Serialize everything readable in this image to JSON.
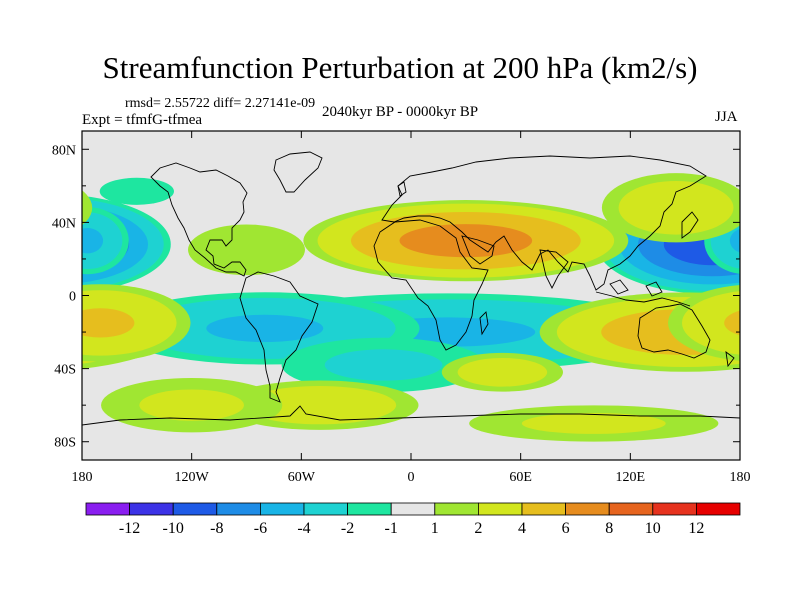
{
  "title": "Streamfunction Perturbation at 200 hPa (km2/s)",
  "stats": "rmsd= 2.55722 diff= 2.27141e-09",
  "experiment": "Expt = tfmfG-tfmea",
  "period": "2040kyr BP - 0000kyr BP",
  "season": "JJA",
  "chart_data": {
    "type": "heatmap",
    "projection": "cylindrical equidistant",
    "variable": "streamfunction perturbation",
    "units": "km2/s",
    "level_hPa": 200,
    "lat_range": [
      -90,
      90
    ],
    "lon_range": [
      -180,
      180
    ],
    "lat_tick_values": [
      80,
      40,
      0,
      -40,
      -80
    ],
    "lat_tick_labels": [
      "80N",
      "40N",
      "0",
      "40S",
      "80S"
    ],
    "lon_tick_values": [
      -180,
      -120,
      -60,
      0,
      60,
      120,
      180
    ],
    "lon_tick_labels": [
      "180",
      "120W",
      "60W",
      "0",
      "60E",
      "120E",
      "180"
    ],
    "contour_levels": [
      -12,
      -10,
      -8,
      -6,
      -4,
      -2,
      -1,
      1,
      2,
      4,
      6,
      8,
      10,
      12
    ],
    "colorbar_labels": [
      "-12",
      "-10",
      "-8",
      "-6",
      "-4",
      "-2",
      "-1",
      "1",
      "2",
      "4",
      "6",
      "8",
      "10",
      "12"
    ],
    "colors": [
      "#8a1ef0",
      "#3c32e6",
      "#1e5ae6",
      "#1e8ce6",
      "#19b4e6",
      "#1ed2d2",
      "#1ee6a0",
      "#e6e6e6",
      "#a0e632",
      "#d2e61e",
      "#e6be1e",
      "#e68c1e",
      "#e6641e",
      "#e6321e",
      "#e60000"
    ],
    "features": [
      {
        "lon": 165,
        "lat": 28,
        "value": -9.5,
        "lon_radius": 42,
        "lat_radius": 18
      },
      {
        "lon": -177,
        "lat": 30,
        "value": -4.5,
        "lon_radius": 16,
        "lat_radius": 13
      },
      {
        "lon": 20,
        "lat": -20,
        "value": -4.5,
        "lon_radius": 90,
        "lat_radius": 15
      },
      {
        "lon": -80,
        "lat": -18,
        "value": -4.5,
        "lon_radius": 60,
        "lat_radius": 14
      },
      {
        "lon": -15,
        "lat": -38,
        "value": -2.5,
        "lon_radius": 45,
        "lat_radius": 12
      },
      {
        "lon": 145,
        "lat": 48,
        "value": 3.5,
        "lon_radius": 30,
        "lat_radius": 14
      },
      {
        "lon": 30,
        "lat": 30,
        "value": 7,
        "lon_radius": 60,
        "lat_radius": 15
      },
      {
        "lon": -90,
        "lat": 25,
        "value": 1.8,
        "lon_radius": 30,
        "lat_radius": 13
      },
      {
        "lon": 150,
        "lat": -20,
        "value": 5.5,
        "lon_radius": 55,
        "lat_radius": 15
      },
      {
        "lon": -170,
        "lat": -15,
        "value": 4.5,
        "lon_radius": 35,
        "lat_radius": 15
      },
      {
        "lon": -50,
        "lat": -60,
        "value": 3.5,
        "lon_radius": 40,
        "lat_radius": 10
      },
      {
        "lon": 50,
        "lat": -42,
        "value": 3.2,
        "lon_radius": 25,
        "lat_radius": 8
      },
      {
        "lon": 100,
        "lat": -70,
        "value": 2.5,
        "lon_radius": 55,
        "lat_radius": 8
      },
      {
        "lon": -120,
        "lat": -60,
        "value": 2.5,
        "lon_radius": 40,
        "lat_radius": 12
      },
      {
        "lon": -150,
        "lat": 57,
        "value": -1.5,
        "lon_radius": 22,
        "lat_radius": 8
      }
    ]
  }
}
